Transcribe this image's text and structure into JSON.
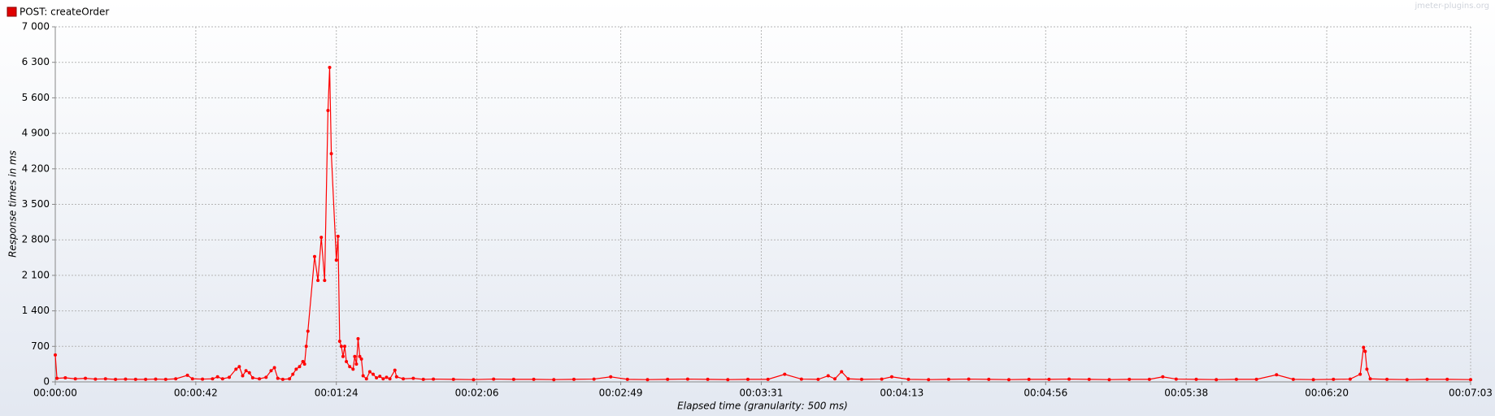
{
  "chart_data": {
    "type": "line",
    "legend_label": "POST: createOrder",
    "watermark": "jmeter-plugins.org",
    "y_label": "Response times in ms",
    "x_label": "Elapsed time (granularity: 500 ms)",
    "grid": true,
    "series": [
      {
        "name": "POST: createOrder",
        "color": "#ff0000",
        "x": [
          0,
          0.5,
          3,
          6,
          9,
          12,
          15,
          18,
          21,
          24,
          27,
          30,
          33,
          36,
          39.5,
          41,
          44,
          47,
          48.5,
          50,
          52,
          54,
          55,
          56,
          57,
          58,
          59,
          61,
          63,
          64.5,
          65.5,
          66.5,
          68,
          70,
          71,
          72,
          73,
          74,
          74.5,
          75,
          75.5,
          77.5,
          78.5,
          79.5,
          80.5,
          81.5,
          82,
          82.5,
          84,
          84.5,
          85,
          85.5,
          86,
          86.5,
          87,
          88,
          89,
          89.5,
          90,
          90.5,
          91,
          91.5,
          92,
          93,
          94,
          95,
          96,
          97,
          98,
          99,
          100,
          101.5,
          102,
          104,
          107,
          110,
          113,
          119,
          125,
          131,
          137,
          143,
          149,
          155,
          161,
          166,
          171,
          177,
          183,
          189,
          195,
          201,
          207,
          213,
          218,
          223,
          228,
          231,
          233,
          235,
          237,
          241,
          247,
          250,
          255,
          261,
          267,
          273,
          279,
          285,
          291,
          297,
          303,
          309,
          315,
          321,
          327,
          331,
          335,
          341,
          347,
          353,
          359,
          365,
          370,
          376,
          382,
          387,
          390,
          391,
          391.5,
          392,
          393,
          398,
          404,
          410,
          416,
          423
        ],
        "values": [
          530,
          70,
          80,
          60,
          70,
          55,
          60,
          50,
          55,
          50,
          50,
          55,
          50,
          60,
          130,
          60,
          55,
          60,
          100,
          60,
          90,
          250,
          300,
          120,
          220,
          180,
          80,
          60,
          90,
          220,
          280,
          70,
          50,
          60,
          150,
          250,
          300,
          400,
          350,
          700,
          1000,
          2470,
          2000,
          2850,
          2000,
          5350,
          6200,
          4500,
          2400,
          2870,
          800,
          700,
          500,
          700,
          400,
          300,
          250,
          500,
          350,
          850,
          500,
          450,
          120,
          60,
          200,
          150,
          80,
          110,
          60,
          90,
          60,
          230,
          100,
          60,
          70,
          50,
          55,
          50,
          45,
          55,
          50,
          50,
          45,
          50,
          55,
          100,
          50,
          45,
          50,
          55,
          50,
          45,
          50,
          50,
          150,
          55,
          50,
          120,
          60,
          200,
          60,
          50,
          55,
          100,
          50,
          45,
          50,
          55,
          50,
          45,
          50,
          50,
          55,
          50,
          45,
          50,
          50,
          100,
          55,
          50,
          45,
          50,
          50,
          140,
          50,
          45,
          50,
          55,
          150,
          680,
          600,
          250,
          60,
          50,
          45,
          50,
          50,
          45
        ]
      }
    ],
    "xlim": [
      0,
      423
    ],
    "ylim": [
      0,
      7000
    ],
    "xticks": [
      {
        "value": 0,
        "label": "00:00:00"
      },
      {
        "value": 42,
        "label": "00:00:42"
      },
      {
        "value": 84,
        "label": "00:01:24"
      },
      {
        "value": 126,
        "label": "00:02:06"
      },
      {
        "value": 169,
        "label": "00:02:49"
      },
      {
        "value": 211,
        "label": "00:03:31"
      },
      {
        "value": 253,
        "label": "00:04:13"
      },
      {
        "value": 296,
        "label": "00:04:56"
      },
      {
        "value": 338,
        "label": "00:05:38"
      },
      {
        "value": 380,
        "label": "00:06:20"
      },
      {
        "value": 423,
        "label": "00:07:03"
      }
    ],
    "yticks": [
      0,
      700,
      {
        "value": 1400,
        "label": "1 400"
      },
      {
        "value": 2100,
        "label": "2 100"
      },
      {
        "value": 2800,
        "label": "2 800"
      },
      {
        "value": 3500,
        "label": "3 500"
      },
      {
        "value": 4200,
        "label": "4 200"
      },
      {
        "value": 4900,
        "label": "4 900"
      },
      {
        "value": 5600,
        "label": "5 600"
      },
      {
        "value": 6300,
        "label": "6 300"
      },
      {
        "value": 7000,
        "label": "7 000"
      }
    ]
  }
}
